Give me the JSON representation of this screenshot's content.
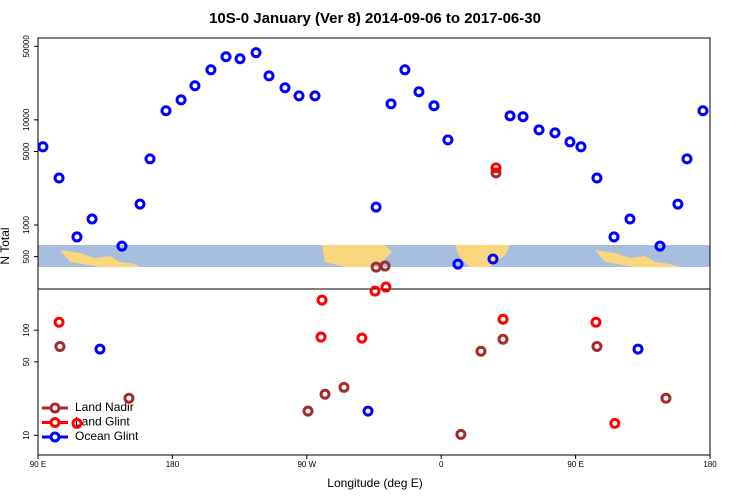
{
  "chart_data": {
    "type": "scatter",
    "title": "10S-0 January (Ver 8)   2014-09-06 to 2017-06-30",
    "x_label": "Longitude (deg E)",
    "y_label": "N Total",
    "xlim": [
      90,
      540
    ],
    "xticks": [
      {
        "value": 90,
        "label": "90 E"
      },
      {
        "value": 180,
        "label": "180"
      },
      {
        "value": 270,
        "label": "90 W"
      },
      {
        "value": 360,
        "label": "0"
      },
      {
        "value": 450,
        "label": "90 E"
      },
      {
        "value": 540,
        "label": "180"
      }
    ],
    "ylim": [
      6.5,
      60000
    ],
    "log_y": true,
    "yticks": [
      10,
      50,
      100,
      500,
      1000,
      5000,
      10000,
      50000
    ],
    "legend": "bottom-left",
    "series": [
      {
        "name": "Land Nadir",
        "color": "#a52a2a",
        "x": [
          104.7,
          150.9,
          270.8,
          282.2,
          294.9,
          316.4,
          322.4,
          373.2,
          386.6,
          396.7,
          401.4,
          464.3,
          510.5
        ],
        "values": [
          70,
          22.5,
          17,
          24.6,
          28.6,
          398,
          407,
          10.2,
          63,
          3130,
          82,
          70,
          22.5
        ]
      },
      {
        "name": "Land Glint",
        "color": "#ff0000",
        "x": [
          104.1,
          116.1,
          280.2,
          279.5,
          306.9,
          315.7,
          323.0,
          396.7,
          401.4,
          463.6,
          476.3
        ],
        "values": [
          119,
          13,
          193,
          86,
          84,
          235,
          257,
          3490,
          127,
          119,
          13
        ]
      },
      {
        "name": "Ocean Glint",
        "color": "#0000ff",
        "x": [
          93.3,
          104.1,
          116.1,
          126.2,
          131.5,
          146.2,
          158.3,
          165.0,
          175.7,
          185.8,
          195.1,
          205.8,
          215.9,
          225.3,
          236.0,
          244.7,
          255.4,
          264.8,
          275.5,
          311.0,
          316.4,
          326.4,
          335.7,
          345.1,
          355.2,
          364.5,
          371.2,
          394.7,
          406.1,
          414.8,
          425.5,
          436.2,
          446.2,
          453.6,
          464.3,
          475.7,
          486.4,
          491.8,
          506.5,
          518.5,
          524.6,
          535.3
        ],
        "values": [
          5540,
          2800,
          770,
          1140,
          66,
          630,
          1580,
          4250,
          12200,
          15500,
          21100,
          29900,
          39800,
          38100,
          43500,
          26200,
          20200,
          16900,
          16900,
          17,
          1480,
          14200,
          29900,
          18500,
          13600,
          6450,
          425,
          475,
          10900,
          10700,
          8030,
          7520,
          6170,
          5540,
          2800,
          770,
          1140,
          66,
          630,
          1580,
          4250,
          12200
        ]
      }
    ]
  }
}
